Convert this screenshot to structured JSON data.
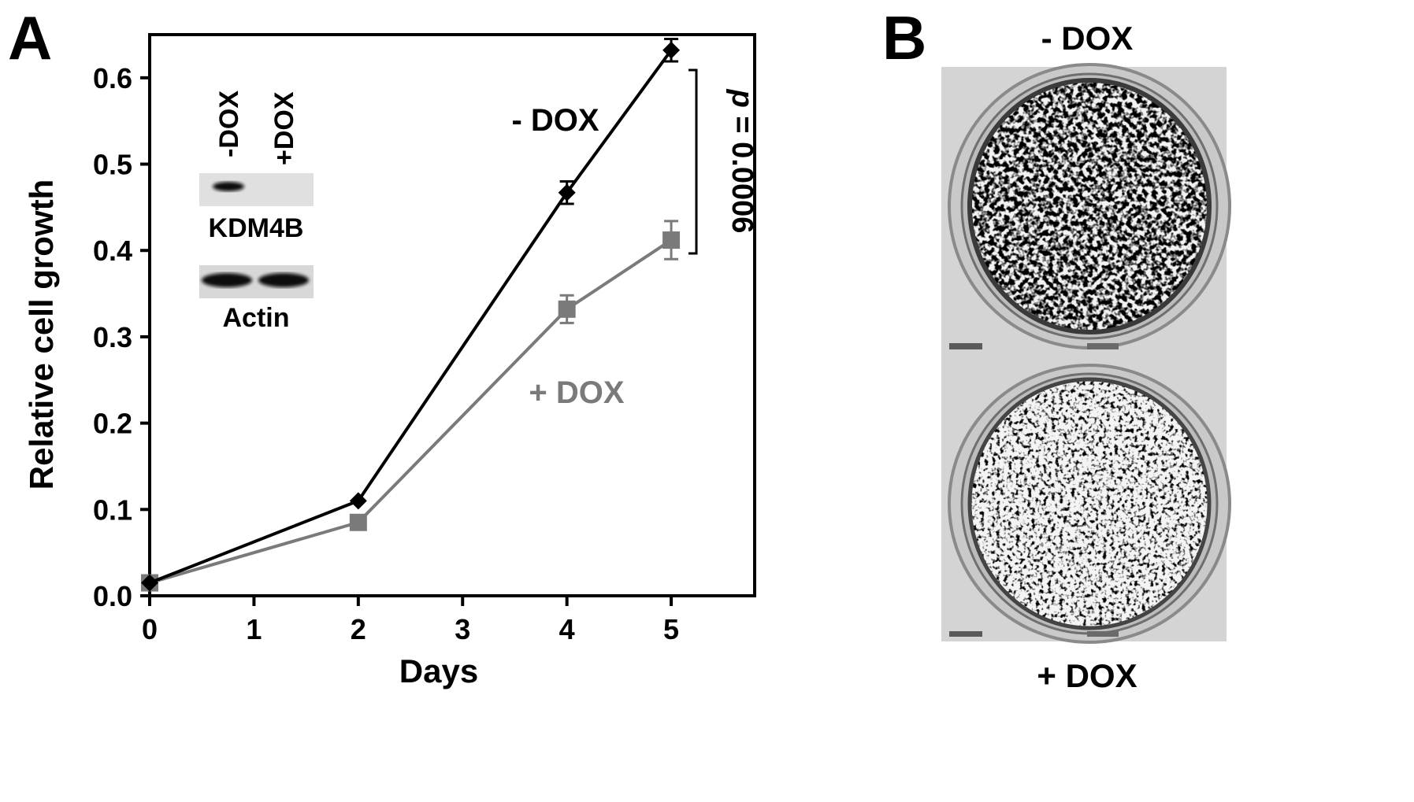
{
  "panel_a_letter": "A",
  "panel_b_letter": "B",
  "chart_data": {
    "type": "line",
    "title": "",
    "xlabel": "Days",
    "ylabel": "Relative cell growth",
    "xlim": [
      0,
      5.8
    ],
    "ylim": [
      0,
      0.65
    ],
    "xticks": [
      "0",
      "1",
      "2",
      "3",
      "4",
      "5"
    ],
    "yticks": [
      "0.0",
      "0.1",
      "0.2",
      "0.3",
      "0.4",
      "0.5",
      "0.6"
    ],
    "grid": false,
    "series": [
      {
        "name": "- DOX",
        "color": "#000000",
        "marker": "diamond",
        "x": [
          0,
          2,
          4,
          5
        ],
        "y": [
          0.015,
          0.11,
          0.467,
          0.632
        ],
        "err": [
          0.004,
          0.004,
          0.013,
          0.013
        ]
      },
      {
        "name": "+ DOX",
        "color": "#7a7a7a",
        "marker": "square",
        "x": [
          0,
          2,
          4,
          5
        ],
        "y": [
          0.015,
          0.085,
          0.332,
          0.412
        ],
        "err": [
          0.004,
          0.004,
          0.016,
          0.022
        ]
      }
    ],
    "annotation": {
      "text": "p = 0.0006",
      "italic_part": "p",
      "rest": " = 0.0006"
    }
  },
  "inset_blot": {
    "lane_labels": [
      "-DOX",
      "+DOX"
    ],
    "bands": [
      {
        "label": "KDM4B",
        "lane_intensity": [
          1,
          0
        ]
      },
      {
        "label": "Actin",
        "lane_intensity": [
          1,
          1
        ]
      }
    ]
  },
  "panel_b": {
    "top_label": "- DOX",
    "bottom_label": "+ DOX"
  }
}
